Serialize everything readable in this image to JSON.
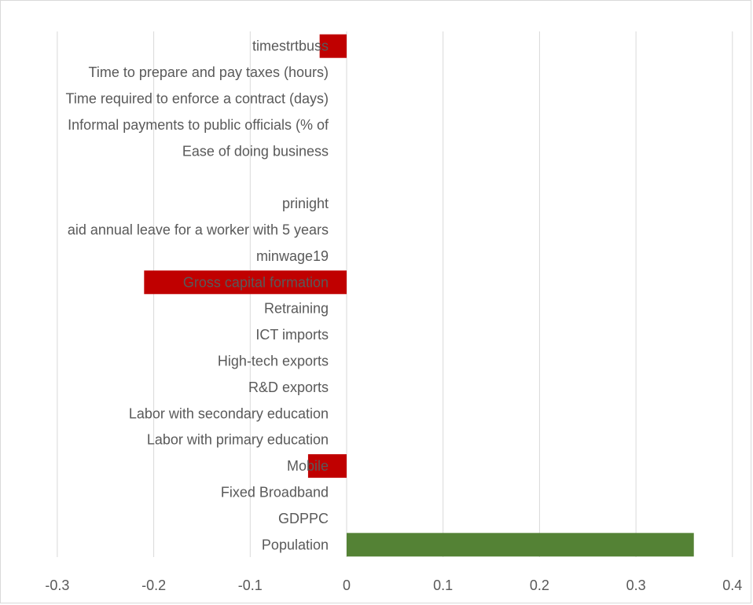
{
  "chart_data": {
    "type": "bar",
    "orientation": "horizontal",
    "categories": [
      "timestrtbuss",
      "Time to prepare and pay taxes (hours)",
      "Time required to enforce a contract (days)",
      "Informal payments to public officials (% of",
      "Ease of doing business",
      "",
      "prinight",
      "aid annual leave for a worker with 5 years",
      "minwage19",
      "Gross capital formation",
      "Retraining",
      "ICT imports",
      "High-tech exports",
      "R&D exports",
      "Labor with secondary education",
      "Labor with primary education",
      "Mobile",
      "Fixed Broadband",
      "GDPPC",
      "Population"
    ],
    "values": [
      -0.028,
      0,
      0,
      0,
      0,
      0,
      0,
      0,
      0,
      -0.21,
      0,
      0,
      0,
      0,
      0,
      0,
      -0.04,
      0,
      0,
      0.36
    ],
    "xlim": [
      -0.35,
      0.4
    ],
    "xticks": [
      "-0.3",
      "-0.2",
      "-0.1",
      "0",
      "0.1",
      "0.2",
      "0.3",
      "0.4"
    ],
    "xtick_values": [
      -0.3,
      -0.2,
      -0.1,
      0,
      0.1,
      0.2,
      0.3,
      0.4
    ],
    "grid": true,
    "legend": "none",
    "colors": {
      "negative": "#c00000",
      "positive": "#548235",
      "grid": "#d9d9d9",
      "text": "#595959"
    }
  }
}
